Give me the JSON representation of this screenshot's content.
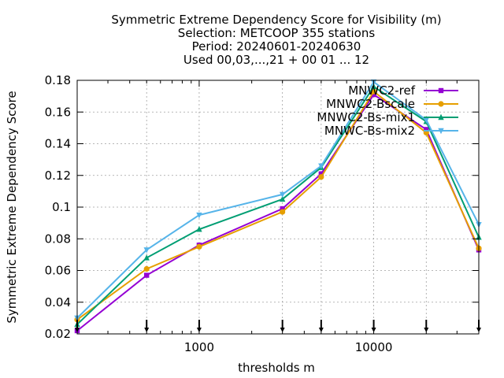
{
  "chart_data": {
    "type": "line",
    "title_lines": [
      "Symmetric Extreme Dependency Score  for Visibility (m)",
      "Selection: METCOOP    355 stations",
      "Period: 20240601-20240630",
      "Used 00,03,...,21 + 00 01 ... 12"
    ],
    "xlabel": "thresholds m",
    "ylabel": "Symmetric Extreme Dependency Score",
    "x_scale": "log",
    "xlim": [
      200,
      40000
    ],
    "ylim": [
      0.02,
      0.18
    ],
    "y_ticks": [
      0.02,
      0.04,
      0.06,
      0.08,
      0.1,
      0.12,
      0.14,
      0.16,
      0.18
    ],
    "y_tick_labels": [
      "0.02",
      "0.04",
      "0.06",
      "0.08",
      "0.1",
      "0.12",
      "0.14",
      "0.16",
      "0.18"
    ],
    "x_ticks": [
      1000,
      10000
    ],
    "x_tick_labels": [
      "1000",
      "10000"
    ],
    "threshold_markers": [
      200,
      500,
      1000,
      3000,
      5000,
      10000,
      20000,
      40000
    ],
    "grid": true,
    "legend_position": "top-right",
    "x": [
      200,
      500,
      1000,
      3000,
      5000,
      10000,
      20000,
      40000
    ],
    "series": [
      {
        "name": "MNWC2-ref",
        "color": "#9400d3",
        "marker": "square",
        "values": [
          0.022,
          0.057,
          0.076,
          0.099,
          0.121,
          0.171,
          0.149,
          0.073
        ]
      },
      {
        "name": "MNWC2-Bscale",
        "color": "#e69f00",
        "marker": "circle",
        "values": [
          0.029,
          0.061,
          0.075,
          0.097,
          0.119,
          0.173,
          0.147,
          0.074
        ]
      },
      {
        "name": "MNWC2-Bs-mix1",
        "color": "#009e73",
        "marker": "triangle",
        "values": [
          0.026,
          0.068,
          0.086,
          0.105,
          0.125,
          0.176,
          0.154,
          0.081
        ]
      },
      {
        "name": "MNWC-Bs-mix2",
        "color": "#56b4e9",
        "marker": "triangle-down",
        "values": [
          0.03,
          0.073,
          0.095,
          0.108,
          0.126,
          0.179,
          0.155,
          0.089
        ]
      }
    ]
  }
}
